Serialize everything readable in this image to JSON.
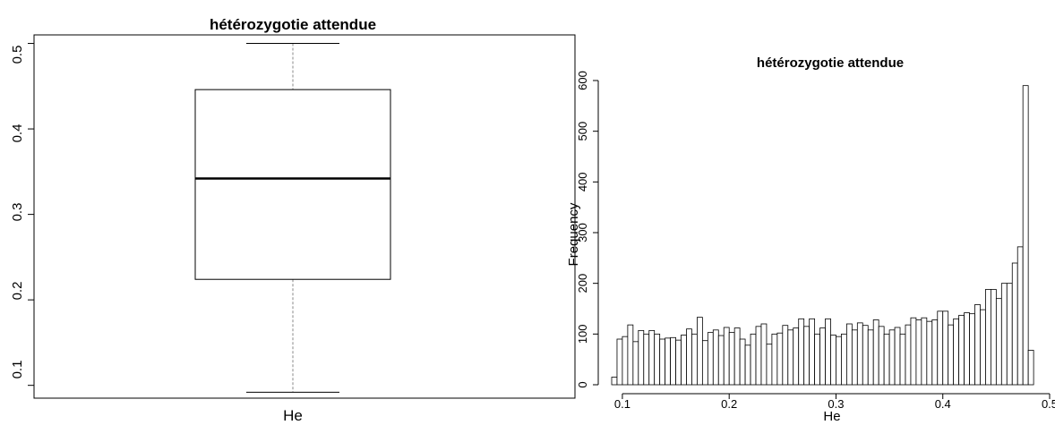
{
  "chart_data": [
    {
      "type": "box",
      "title": "hétérozygotie attendue",
      "xlabel": "He",
      "ylim": [
        0.085,
        0.51
      ],
      "yticks": [
        "0.1",
        "0.2",
        "0.3",
        "0.4",
        "0.5"
      ],
      "box": {
        "min": 0.092,
        "q1": 0.224,
        "median": 0.342,
        "q3": 0.446,
        "max": 0.5
      },
      "colors": {
        "box": "#ffffff",
        "stroke": "#000000"
      }
    },
    {
      "type": "histogram",
      "title": "hétérozygotie attendue",
      "xlabel": "He",
      "ylabel": "Frequency",
      "xlim": [
        0.09,
        0.5
      ],
      "ylim": [
        0,
        600
      ],
      "xticks": [
        "0.1",
        "0.2",
        "0.3",
        "0.4",
        "0.5"
      ],
      "yticks": [
        "0",
        "100",
        "200",
        "300",
        "400",
        "500",
        "600"
      ],
      "bin_start": 0.09,
      "bin_width": 0.005,
      "counts": [
        15,
        90,
        95,
        118,
        85,
        107,
        100,
        107,
        100,
        90,
        92,
        93,
        88,
        98,
        110,
        100,
        133,
        87,
        103,
        108,
        97,
        113,
        103,
        112,
        90,
        78,
        100,
        115,
        120,
        80,
        100,
        102,
        117,
        108,
        112,
        130,
        115,
        130,
        100,
        112,
        130,
        98,
        95,
        100,
        120,
        108,
        122,
        117,
        108,
        128,
        115,
        100,
        108,
        113,
        100,
        118,
        132,
        128,
        132,
        125,
        128,
        145,
        145,
        118,
        130,
        137,
        142,
        140,
        158,
        148,
        188,
        188,
        170,
        200,
        200,
        240,
        272,
        590,
        68
      ]
    }
  ]
}
